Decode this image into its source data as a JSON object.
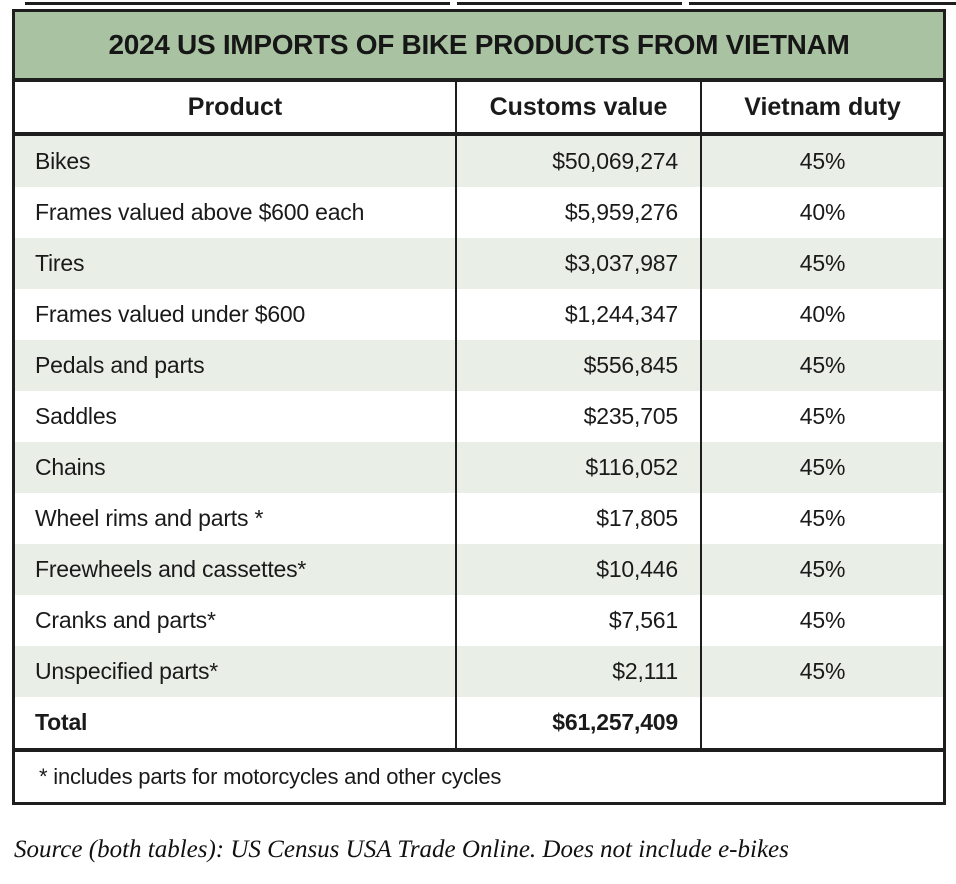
{
  "chart_data": {
    "type": "table",
    "title": "2024 US IMPORTS OF BIKE PRODUCTS FROM VIETNAM",
    "columns": [
      "Product",
      "Customs value",
      "Vietnam duty"
    ],
    "rows": [
      {
        "product": "Bikes",
        "customs_value": "$50,069,274",
        "customs_value_usd": 50069274,
        "vietnam_duty": "45%",
        "vietnam_duty_pct": 45
      },
      {
        "product": "Frames valued above $600 each",
        "customs_value": "$5,959,276",
        "customs_value_usd": 5959276,
        "vietnam_duty": "40%",
        "vietnam_duty_pct": 40
      },
      {
        "product": "Tires",
        "customs_value": "$3,037,987",
        "customs_value_usd": 3037987,
        "vietnam_duty": "45%",
        "vietnam_duty_pct": 45
      },
      {
        "product": "Frames valued under $600",
        "customs_value": "$1,244,347",
        "customs_value_usd": 1244347,
        "vietnam_duty": "40%",
        "vietnam_duty_pct": 40
      },
      {
        "product": "Pedals and parts",
        "customs_value": "$556,845",
        "customs_value_usd": 556845,
        "vietnam_duty": "45%",
        "vietnam_duty_pct": 45
      },
      {
        "product": "Saddles",
        "customs_value": "$235,705",
        "customs_value_usd": 235705,
        "vietnam_duty": "45%",
        "vietnam_duty_pct": 45
      },
      {
        "product": "Chains",
        "customs_value": "$116,052",
        "customs_value_usd": 116052,
        "vietnam_duty": "45%",
        "vietnam_duty_pct": 45
      },
      {
        "product": "Wheel rims and parts *",
        "customs_value": "$17,805",
        "customs_value_usd": 17805,
        "vietnam_duty": "45%",
        "vietnam_duty_pct": 45
      },
      {
        "product": "Freewheels and cassettes*",
        "customs_value": "$10,446",
        "customs_value_usd": 10446,
        "vietnam_duty": "45%",
        "vietnam_duty_pct": 45
      },
      {
        "product": "Cranks and parts*",
        "customs_value": "$7,561",
        "customs_value_usd": 7561,
        "vietnam_duty": "45%",
        "vietnam_duty_pct": 45
      },
      {
        "product": "Unspecified parts*",
        "customs_value": "$2,111",
        "customs_value_usd": 2111,
        "vietnam_duty": "45%",
        "vietnam_duty_pct": 45
      }
    ],
    "total": {
      "product": "Total",
      "customs_value": "$61,257,409",
      "customs_value_usd": 61257409,
      "vietnam_duty": ""
    },
    "footnote": "* includes parts for motorcycles and other cycles",
    "source_note": "Source (both tables): US Census USA Trade Online. Does not include e-bikes",
    "layout_hints": {
      "row_striping": "alternating, first data row shaded",
      "value_alignment": "right",
      "duty_alignment": "center"
    }
  },
  "colors": {
    "title_band_bg": "#a9c3a2",
    "shaded_row_bg": "#e9efe7",
    "border": "#1e1e1e",
    "text": "#1a1a1a",
    "page_bg": "#ffffff"
  }
}
